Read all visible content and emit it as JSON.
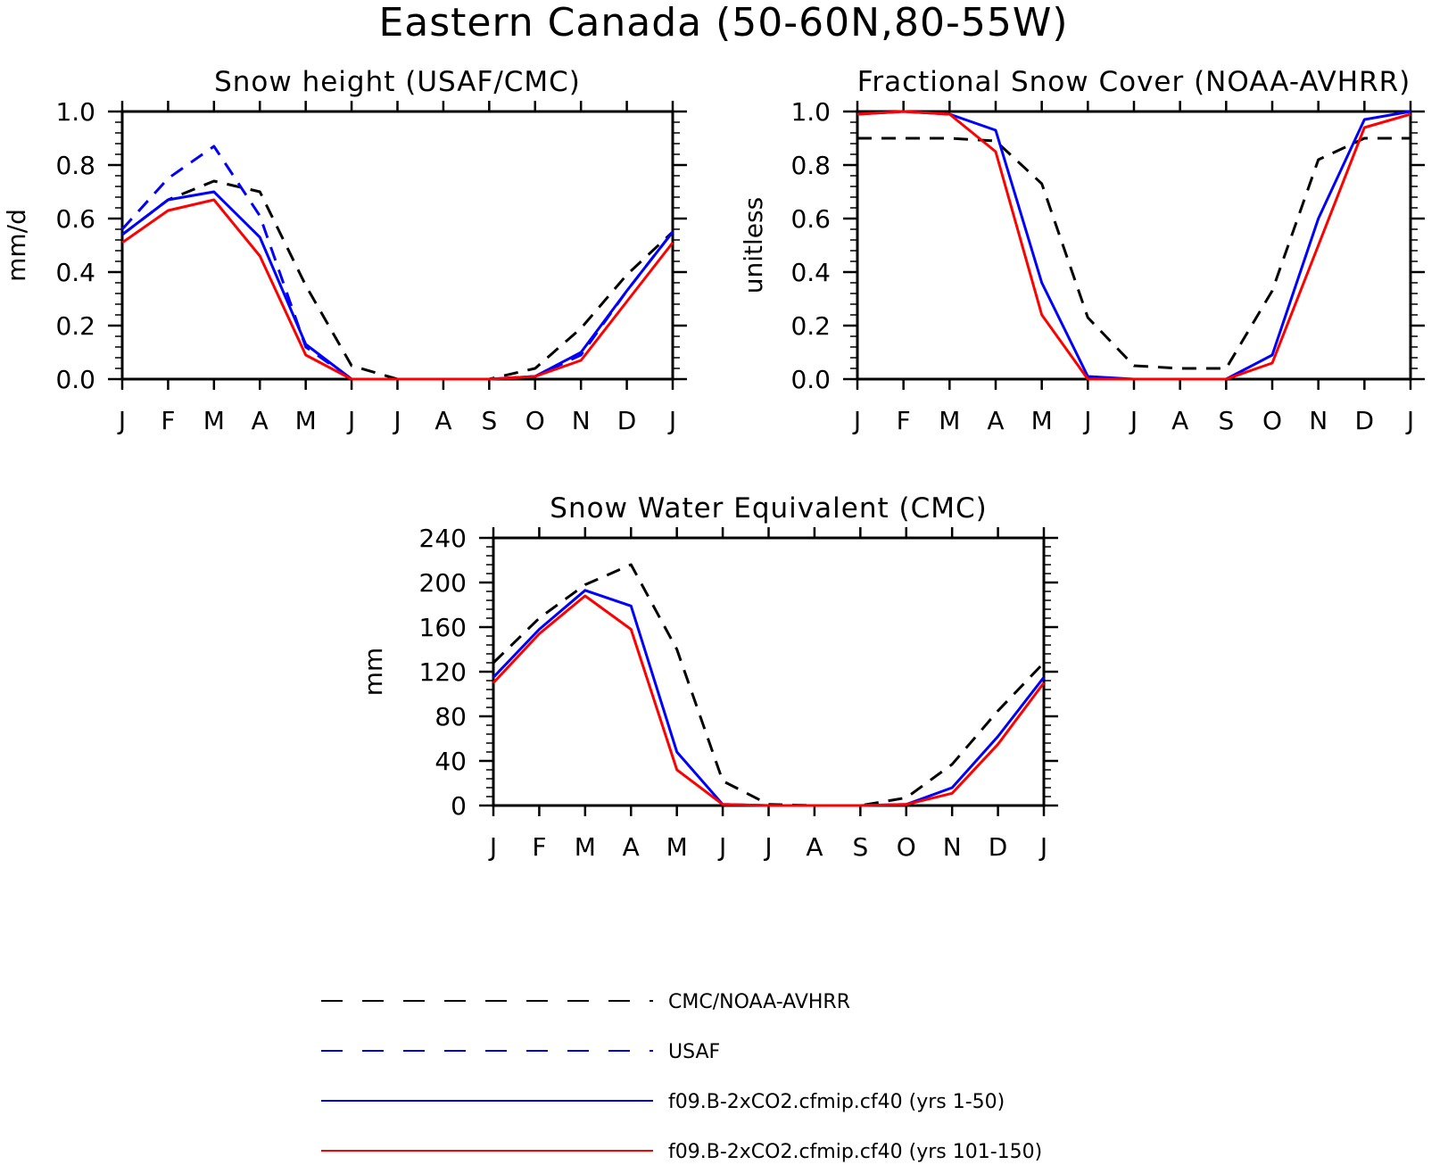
{
  "title": "Eastern Canada (50-60N,80-55W)",
  "legend": [
    {
      "label": "CMC/NOAA-AVHRR",
      "color": "#000000",
      "style": "dashed"
    },
    {
      "label": "USAF",
      "color": "#0000ff",
      "style": "dashed"
    },
    {
      "label": "f09.B-2xCO2.cfmip.cf40 (yrs 1-50)",
      "color": "#0000ff",
      "style": "solid"
    },
    {
      "label": "f09.B-2xCO2.cfmip.cf40 (yrs 101-150)",
      "color": "#ff0000",
      "style": "solid"
    }
  ],
  "chart_data": [
    {
      "type": "line",
      "title": "Snow height (USAF/CMC)",
      "ylabel": "mm/d",
      "xlabel": "",
      "categories": [
        "J",
        "F",
        "M",
        "A",
        "M",
        "J",
        "J",
        "A",
        "S",
        "O",
        "N",
        "D",
        "J"
      ],
      "ylim": [
        0,
        1.0
      ],
      "yticks": [
        "0.0",
        "0.2",
        "0.4",
        "0.6",
        "0.8",
        "1.0"
      ],
      "series": [
        {
          "name": "CMC/NOAA-AVHRR",
          "color": "#000000",
          "style": "dashed",
          "values": [
            0.54,
            0.67,
            0.74,
            0.7,
            0.35,
            0.05,
            0.0,
            0.0,
            0.0,
            0.04,
            0.19,
            0.39,
            0.55
          ]
        },
        {
          "name": "USAF",
          "color": "#0000ff",
          "style": "dashed",
          "values": [
            0.56,
            0.75,
            0.87,
            0.61,
            0.12,
            0.0,
            0.0,
            0.0,
            0.0,
            0.01,
            0.09,
            0.33,
            0.55
          ]
        },
        {
          "name": "f09.B-2xCO2.cfmip.cf40 (yrs 1-50)",
          "color": "#0000ff",
          "style": "solid",
          "values": [
            0.54,
            0.67,
            0.7,
            0.53,
            0.13,
            0.0,
            0.0,
            0.0,
            0.0,
            0.01,
            0.1,
            0.33,
            0.55
          ]
        },
        {
          "name": "f09.B-2xCO2.cfmip.cf40 (yrs 101-150)",
          "color": "#ff0000",
          "style": "solid",
          "values": [
            0.51,
            0.63,
            0.67,
            0.46,
            0.09,
            0.0,
            0.0,
            0.0,
            0.0,
            0.01,
            0.07,
            0.29,
            0.51
          ]
        }
      ]
    },
    {
      "type": "line",
      "title": "Fractional Snow Cover (NOAA-AVHRR)",
      "ylabel": "unitless",
      "xlabel": "",
      "categories": [
        "J",
        "F",
        "M",
        "A",
        "M",
        "J",
        "J",
        "A",
        "S",
        "O",
        "N",
        "D",
        "J"
      ],
      "ylim": [
        0,
        1.0
      ],
      "yticks": [
        "0.0",
        "0.2",
        "0.4",
        "0.6",
        "0.8",
        "1.0"
      ],
      "series": [
        {
          "name": "CMC/NOAA-AVHRR",
          "color": "#000000",
          "style": "dashed",
          "values": [
            0.9,
            0.9,
            0.9,
            0.89,
            0.73,
            0.23,
            0.05,
            0.04,
            0.04,
            0.33,
            0.82,
            0.9,
            0.9
          ]
        },
        {
          "name": "f09.B-2xCO2.cfmip.cf40 (yrs 1-50)",
          "color": "#0000ff",
          "style": "solid",
          "values": [
            0.99,
            1.0,
            0.99,
            0.93,
            0.36,
            0.01,
            0.0,
            0.0,
            0.0,
            0.09,
            0.6,
            0.97,
            1.0
          ]
        },
        {
          "name": "f09.B-2xCO2.cfmip.cf40 (yrs 101-150)",
          "color": "#ff0000",
          "style": "solid",
          "values": [
            0.99,
            1.0,
            0.99,
            0.85,
            0.24,
            0.0,
            0.0,
            0.0,
            0.0,
            0.06,
            0.5,
            0.94,
            0.99
          ]
        }
      ]
    },
    {
      "type": "line",
      "title": "Snow Water Equivalent (CMC)",
      "ylabel": "mm",
      "xlabel": "",
      "categories": [
        "J",
        "F",
        "M",
        "A",
        "M",
        "J",
        "J",
        "A",
        "S",
        "O",
        "N",
        "D",
        "J"
      ],
      "ylim": [
        0,
        240
      ],
      "yticks": [
        "0",
        "40",
        "80",
        "120",
        "160",
        "200",
        "240"
      ],
      "series": [
        {
          "name": "CMC/NOAA-AVHRR",
          "color": "#000000",
          "style": "dashed",
          "values": [
            128,
            168,
            198,
            216,
            140,
            22,
            1,
            0,
            0,
            7,
            37,
            85,
            128
          ]
        },
        {
          "name": "f09.B-2xCO2.cfmip.cf40 (yrs 1-50)",
          "color": "#0000ff",
          "style": "solid",
          "values": [
            115,
            158,
            193,
            179,
            48,
            1,
            0,
            0,
            0,
            1,
            16,
            62,
            115
          ]
        },
        {
          "name": "f09.B-2xCO2.cfmip.cf40 (yrs 101-150)",
          "color": "#ff0000",
          "style": "solid",
          "values": [
            110,
            154,
            188,
            158,
            32,
            1,
            0,
            0,
            0,
            1,
            11,
            55,
            110
          ]
        }
      ]
    }
  ]
}
